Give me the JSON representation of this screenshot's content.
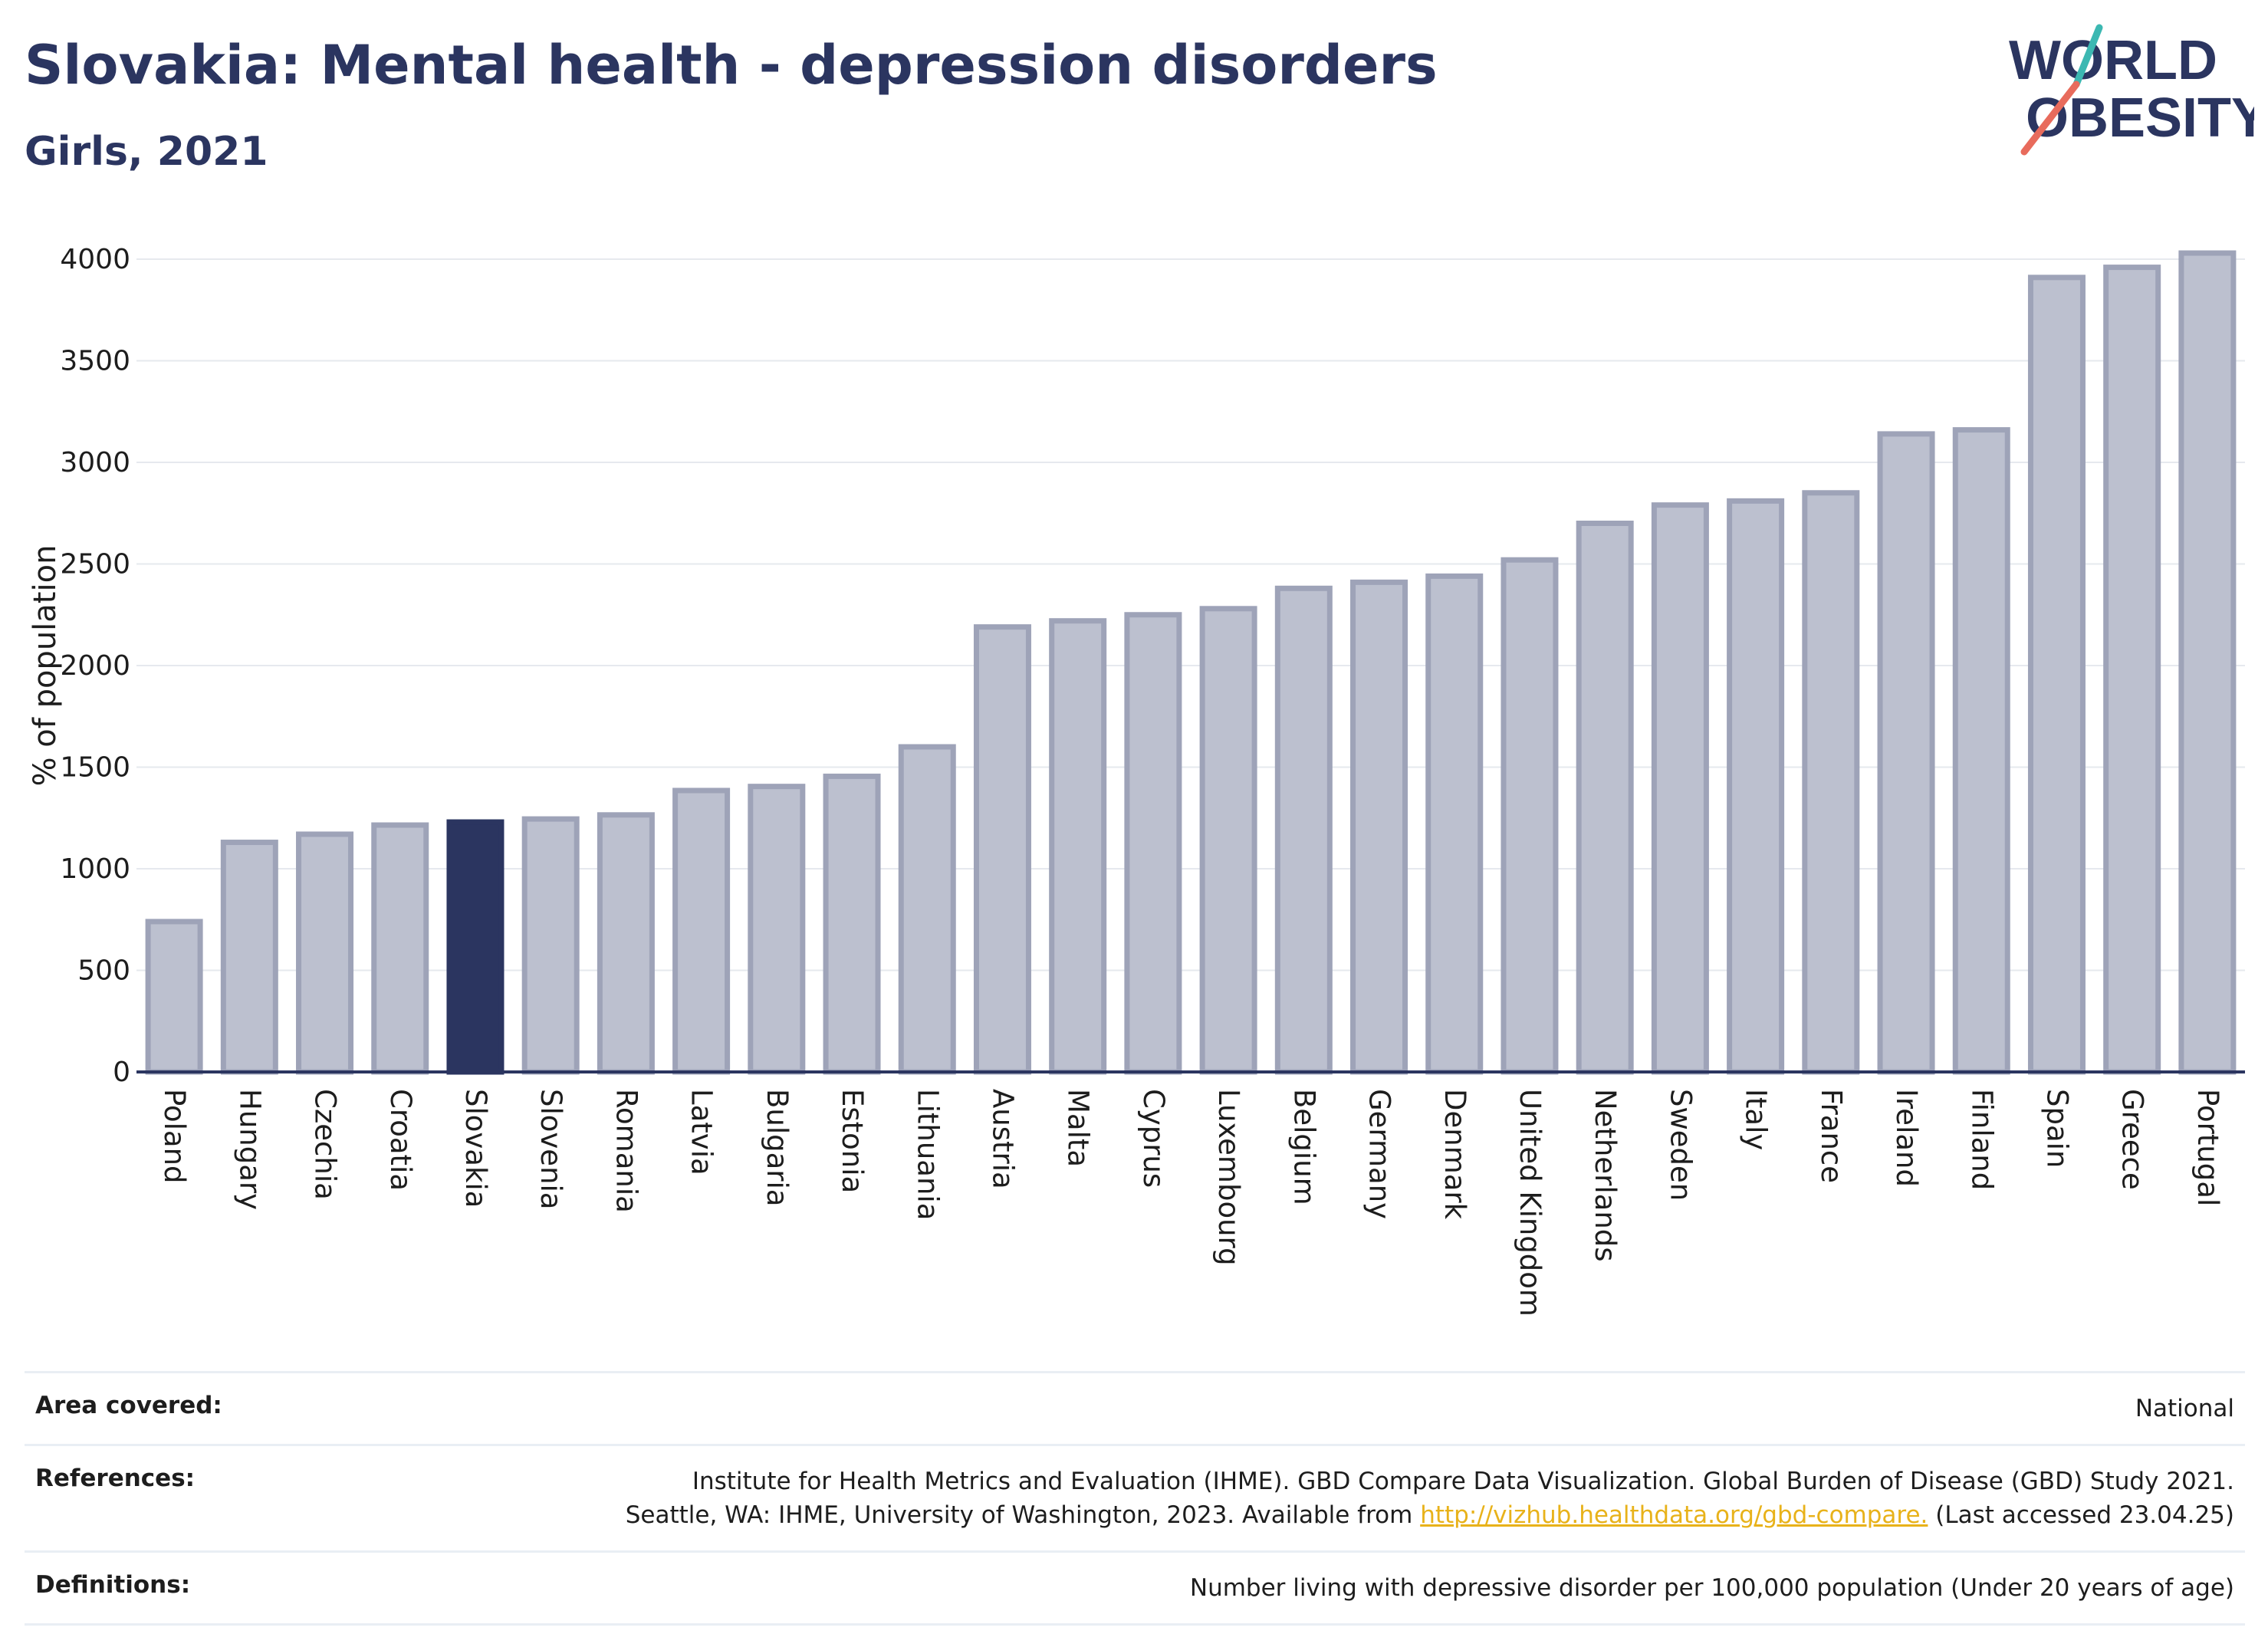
{
  "title": "Slovakia: Mental health - depression disorders",
  "subtitle": "Girls, 2021",
  "logo": {
    "line1": "WORLD",
    "line2": "OBESITY"
  },
  "chart_data": {
    "type": "bar",
    "title": "Slovakia: Mental health - depression disorders",
    "subtitle": "Girls, 2021",
    "ylabel": "% of population",
    "xlabel": "",
    "ylim": [
      0,
      4000
    ],
    "yticks": [
      0,
      500,
      1000,
      1500,
      2000,
      2500,
      3000,
      3500,
      4000
    ],
    "grid": true,
    "highlight": "Slovakia",
    "categories": [
      "Poland",
      "Hungary",
      "Czechia",
      "Croatia",
      "Slovakia",
      "Slovenia",
      "Romania",
      "Latvia",
      "Bulgaria",
      "Estonia",
      "Lithuania",
      "Austria",
      "Malta",
      "Cyprus",
      "Luxembourg",
      "Belgium",
      "Germany",
      "Denmark",
      "United Kingdom",
      "Netherlands",
      "Sweden",
      "Italy",
      "France",
      "Ireland",
      "Finland",
      "Spain",
      "Greece",
      "Portugal"
    ],
    "values": [
      740,
      1130,
      1170,
      1215,
      1230,
      1245,
      1265,
      1385,
      1405,
      1455,
      1600,
      2190,
      2220,
      2250,
      2280,
      2380,
      2410,
      2440,
      2520,
      2700,
      2790,
      2810,
      2850,
      3140,
      3160,
      3910,
      3960,
      4030
    ],
    "colors": {
      "bar": "#bcc0cf",
      "bar_edge": "#9ea3b8",
      "highlight": "#2b3560",
      "grid": "#e6e9ee",
      "axis": "#2b3560"
    }
  },
  "footer": {
    "area_label": "Area covered:",
    "area_value": "National",
    "references_label": "References:",
    "references_line1": "Institute for Health Metrics and Evaluation (IHME). GBD Compare Data Visualization. Global Burden of Disease (GBD) Study 2021.",
    "references_line2_pre": "Seattle, WA: IHME, University of Washington, 2023. Available from ",
    "references_link": "http://vizhub.healthdata.org/gbd-compare.",
    "references_line2_post": " (Last accessed 23.04.25)",
    "definitions_label": "Definitions:",
    "definitions_value": "Number living with depressive disorder per 100,000 population (Under 20 years of age)"
  }
}
